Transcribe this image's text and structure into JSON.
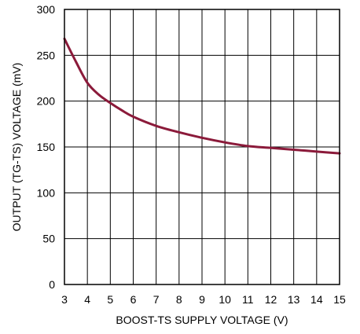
{
  "chart_data": {
    "type": "line",
    "xlabel": "BOOST-TS SUPPLY VOLTAGE (V)",
    "ylabel": "OUTPUT (TG-TS) VOLTAGE (mV)",
    "xlim": [
      3,
      15
    ],
    "ylim": [
      0,
      300
    ],
    "x_ticks": [
      3,
      4,
      5,
      6,
      7,
      8,
      9,
      10,
      11,
      12,
      13,
      14,
      15
    ],
    "y_ticks": [
      0,
      50,
      100,
      150,
      200,
      250,
      300
    ],
    "grid": true,
    "line_color": "#8b1a3a",
    "series": [
      {
        "x": [
          3,
          3.5,
          4,
          4.5,
          5,
          5.5,
          6,
          7,
          8,
          9,
          10,
          11,
          12,
          13,
          14,
          15
        ],
        "y": [
          268,
          243,
          220,
          207,
          198,
          190,
          183,
          173,
          166,
          160,
          155,
          151,
          149,
          147,
          145,
          143
        ]
      }
    ]
  }
}
